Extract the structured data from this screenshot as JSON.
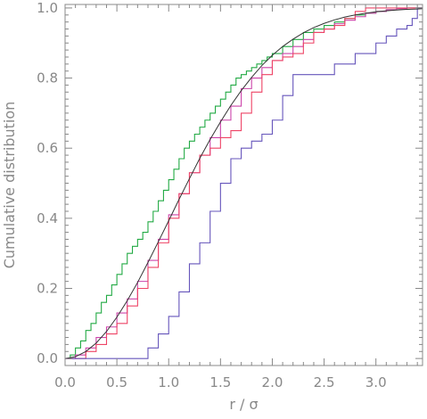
{
  "chart_data": {
    "type": "line",
    "title": "",
    "xlabel": "r / σ",
    "ylabel": "Cumulative distribution",
    "xlim": [
      0.0,
      3.45
    ],
    "ylim": [
      -0.02,
      1.01
    ],
    "xticks": [
      "0.0",
      "0.5",
      "1.0",
      "1.5",
      "2.0",
      "2.5",
      "3.0"
    ],
    "yticks": [
      "0.0",
      "0.2",
      "0.4",
      "0.6",
      "0.8",
      "1.0"
    ],
    "grid": false,
    "legend": "none",
    "series": [
      {
        "color": "#22aa44",
        "step": true,
        "x": [
          0.0,
          0.05,
          0.1,
          0.15,
          0.2,
          0.25,
          0.3,
          0.35,
          0.4,
          0.45,
          0.5,
          0.55,
          0.6,
          0.65,
          0.7,
          0.75,
          0.8,
          0.85,
          0.9,
          0.95,
          1.0,
          1.05,
          1.1,
          1.15,
          1.2,
          1.25,
          1.3,
          1.35,
          1.4,
          1.45,
          1.5,
          1.55,
          1.6,
          1.65,
          1.7,
          1.75,
          1.8,
          1.85,
          1.9,
          1.95,
          2.0,
          2.1,
          2.2,
          2.3,
          2.4,
          2.5,
          2.6,
          2.7,
          2.8,
          2.9,
          3.0,
          3.1,
          3.2,
          3.3,
          3.45
        ],
        "y": [
          0.0,
          0.01,
          0.03,
          0.05,
          0.08,
          0.1,
          0.13,
          0.16,
          0.18,
          0.21,
          0.24,
          0.27,
          0.3,
          0.32,
          0.34,
          0.36,
          0.39,
          0.42,
          0.45,
          0.48,
          0.51,
          0.54,
          0.57,
          0.6,
          0.62,
          0.64,
          0.66,
          0.68,
          0.7,
          0.72,
          0.74,
          0.76,
          0.78,
          0.8,
          0.81,
          0.82,
          0.83,
          0.84,
          0.85,
          0.86,
          0.87,
          0.89,
          0.91,
          0.93,
          0.94,
          0.95,
          0.96,
          0.97,
          0.98,
          0.985,
          0.99,
          0.995,
          0.998,
          1.0,
          1.0
        ]
      },
      {
        "color": "#cc44aa",
        "step": true,
        "x": [
          0.0,
          0.1,
          0.2,
          0.3,
          0.4,
          0.5,
          0.6,
          0.7,
          0.8,
          0.9,
          1.0,
          1.1,
          1.2,
          1.3,
          1.4,
          1.5,
          1.6,
          1.7,
          1.8,
          1.9,
          2.0,
          2.1,
          2.2,
          2.3,
          2.4,
          2.5,
          2.6,
          2.7,
          2.8,
          2.9,
          3.0,
          3.1,
          3.2,
          3.3,
          3.45
        ],
        "y": [
          0.0,
          0.01,
          0.03,
          0.06,
          0.09,
          0.13,
          0.17,
          0.22,
          0.28,
          0.34,
          0.41,
          0.47,
          0.53,
          0.58,
          0.63,
          0.68,
          0.72,
          0.77,
          0.8,
          0.83,
          0.85,
          0.87,
          0.89,
          0.91,
          0.93,
          0.94,
          0.955,
          0.965,
          0.975,
          0.985,
          0.99,
          0.995,
          0.998,
          1.0,
          1.0
        ]
      },
      {
        "color": "#ee4466",
        "step": true,
        "x": [
          0.0,
          0.1,
          0.2,
          0.3,
          0.4,
          0.5,
          0.6,
          0.7,
          0.8,
          0.9,
          1.0,
          1.1,
          1.2,
          1.3,
          1.4,
          1.5,
          1.6,
          1.7,
          1.8,
          1.9,
          2.0,
          2.1,
          2.2,
          2.3,
          2.4,
          2.5,
          2.6,
          2.7,
          2.8,
          2.9,
          3.0,
          3.1,
          3.2,
          3.3,
          3.45
        ],
        "y": [
          0.0,
          0.0,
          0.02,
          0.04,
          0.07,
          0.1,
          0.15,
          0.2,
          0.26,
          0.33,
          0.4,
          0.47,
          0.53,
          0.58,
          0.6,
          0.63,
          0.65,
          0.7,
          0.76,
          0.81,
          0.85,
          0.86,
          0.87,
          0.9,
          0.93,
          0.94,
          0.95,
          0.97,
          0.99,
          1.0,
          1.0,
          1.0,
          1.0,
          1.0,
          1.0
        ]
      },
      {
        "color": "#6655bb",
        "step": true,
        "x": [
          0.0,
          0.7,
          0.8,
          0.9,
          1.0,
          1.1,
          1.2,
          1.3,
          1.4,
          1.5,
          1.6,
          1.7,
          1.8,
          1.9,
          2.0,
          2.1,
          2.2,
          2.3,
          2.4,
          2.5,
          2.6,
          2.7,
          2.8,
          2.9,
          3.0,
          3.1,
          3.2,
          3.3,
          3.35,
          3.4,
          3.45
        ],
        "y": [
          0.0,
          0.0,
          0.03,
          0.07,
          0.12,
          0.19,
          0.27,
          0.33,
          0.42,
          0.5,
          0.57,
          0.6,
          0.62,
          0.64,
          0.68,
          0.75,
          0.81,
          0.81,
          0.81,
          0.81,
          0.84,
          0.84,
          0.87,
          0.87,
          0.9,
          0.92,
          0.94,
          0.95,
          0.97,
          1.0,
          1.0
        ]
      },
      {
        "color": "#333333",
        "step": false,
        "x": [
          0.0,
          0.1,
          0.2,
          0.3,
          0.4,
          0.5,
          0.6,
          0.7,
          0.8,
          0.9,
          1.0,
          1.1,
          1.2,
          1.3,
          1.4,
          1.5,
          1.6,
          1.7,
          1.8,
          1.9,
          2.0,
          2.1,
          2.2,
          2.3,
          2.4,
          2.5,
          2.6,
          2.7,
          2.8,
          2.9,
          3.0,
          3.1,
          3.2,
          3.3,
          3.4,
          3.45
        ],
        "y": [
          0.0,
          0.005,
          0.02,
          0.044,
          0.077,
          0.118,
          0.165,
          0.217,
          0.274,
          0.333,
          0.393,
          0.454,
          0.513,
          0.571,
          0.625,
          0.675,
          0.722,
          0.764,
          0.802,
          0.836,
          0.865,
          0.89,
          0.911,
          0.929,
          0.944,
          0.956,
          0.966,
          0.974,
          0.98,
          0.985,
          0.989,
          0.992,
          0.994,
          0.996,
          0.997,
          0.998
        ]
      }
    ]
  }
}
